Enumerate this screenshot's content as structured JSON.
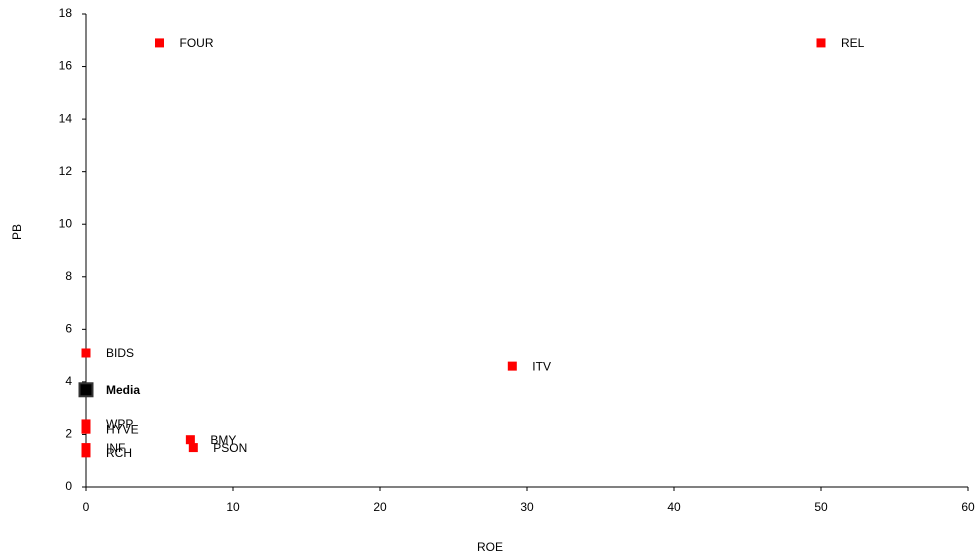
{
  "chart_data": {
    "type": "scatter",
    "x_label": "ROE",
    "y_label": "PB",
    "xlim": [
      0,
      60
    ],
    "xticks": [
      0,
      10,
      20,
      30,
      40,
      50,
      60
    ],
    "ylim": [
      0,
      18
    ],
    "yticks": [
      0,
      2,
      4,
      6,
      8,
      10,
      12,
      14,
      16,
      18
    ],
    "grid": false,
    "points": [
      {
        "label": "FOUR",
        "x": 5.0,
        "y": 16.9,
        "color": "#ff0000"
      },
      {
        "label": "REL",
        "x": 50.0,
        "y": 16.9,
        "color": "#ff0000"
      },
      {
        "label": "BIDS",
        "x": 0,
        "y": 5.1,
        "color": "#ff0000"
      },
      {
        "label": "ITV",
        "x": 29.0,
        "y": 4.6,
        "color": "#ff0000"
      },
      {
        "label": "WPP",
        "x": 0,
        "y": 2.4,
        "color": "#ff0000"
      },
      {
        "label": "HYVE",
        "x": 0,
        "y": 2.2,
        "color": "#ff0000"
      },
      {
        "label": "BMY",
        "x": 7.1,
        "y": 1.8,
        "color": "#ff0000"
      },
      {
        "label": "PSON",
        "x": 7.3,
        "y": 1.5,
        "color": "#ff0000"
      },
      {
        "label": "INF",
        "x": 0,
        "y": 1.5,
        "color": "#ff0000"
      },
      {
        "label": "RCH",
        "x": 0,
        "y": 1.3,
        "color": "#ff0000"
      },
      {
        "label": "Media",
        "x": 0,
        "y": 3.7,
        "color": "#000000",
        "bold": true
      }
    ]
  }
}
